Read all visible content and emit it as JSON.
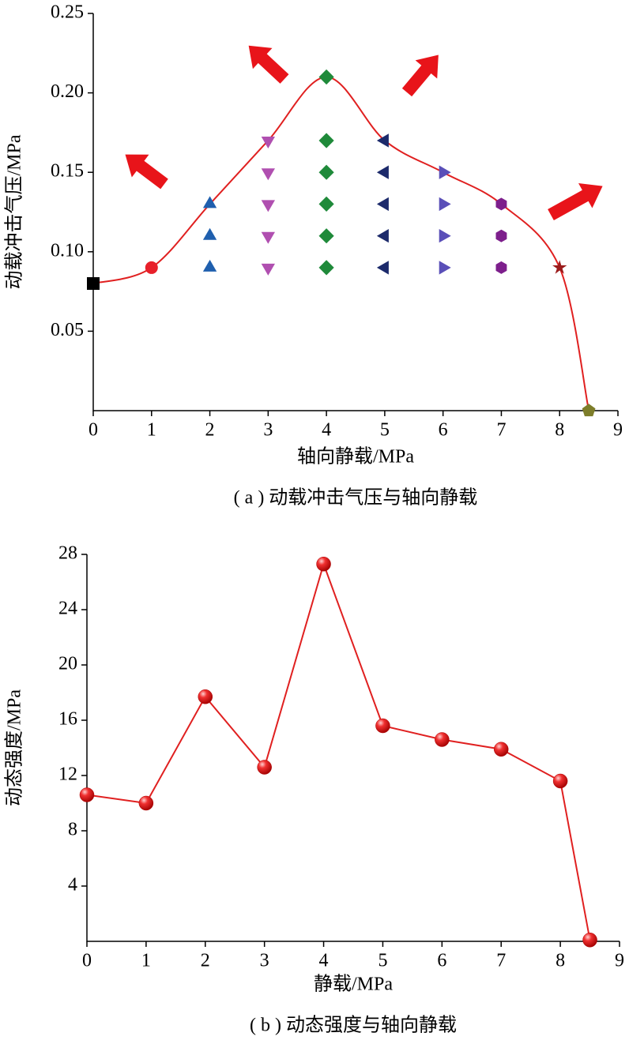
{
  "chart_data": [
    {
      "type": "scatter",
      "x_label": "轴向静载/MPa",
      "y_label": "动载冲击气压/MPa",
      "caption": "( a ) 动载冲击气压与轴向静载",
      "xlim": [
        0,
        9
      ],
      "ylim": [
        0,
        0.25
      ],
      "xticks": [
        0,
        1,
        2,
        3,
        4,
        5,
        6,
        7,
        8,
        9
      ],
      "yticks": [
        0.05,
        {
          "value": 0.1,
          "label": "0.10"
        },
        0.15,
        {
          "value": 0.2,
          "label": "0.20"
        },
        0.25
      ],
      "series": [
        {
          "marker": "square",
          "color": "#000000",
          "x": [
            0
          ],
          "values": [
            0.08
          ]
        },
        {
          "marker": "circle",
          "color": "#e8202a",
          "x": [
            1
          ],
          "values": [
            0.09
          ]
        },
        {
          "marker": "triangle-up",
          "color": "#1f5fae",
          "x": [
            2,
            2,
            2
          ],
          "values": [
            0.09,
            0.11,
            0.13
          ]
        },
        {
          "marker": "triangle-down",
          "color": "#b04fb0",
          "x": [
            3,
            3,
            3,
            3,
            3
          ],
          "values": [
            0.09,
            0.11,
            0.13,
            0.15,
            0.17
          ]
        },
        {
          "marker": "diamond",
          "color": "#1f8a3a",
          "x": [
            4,
            4,
            4,
            4,
            4,
            4
          ],
          "values": [
            0.09,
            0.11,
            0.13,
            0.15,
            0.17,
            0.21
          ]
        },
        {
          "marker": "triangle-left",
          "color": "#1c2a6b",
          "x": [
            5,
            5,
            5,
            5,
            5
          ],
          "values": [
            0.09,
            0.11,
            0.13,
            0.15,
            0.17
          ]
        },
        {
          "marker": "triangle-right",
          "color": "#5a4fb8",
          "x": [
            6,
            6,
            6,
            6
          ],
          "values": [
            0.09,
            0.11,
            0.13,
            0.15
          ]
        },
        {
          "marker": "hexagon",
          "color": "#7d1f8c",
          "x": [
            7,
            7,
            7
          ],
          "values": [
            0.09,
            0.11,
            0.13
          ]
        },
        {
          "marker": "star",
          "color": "#9b1b1b",
          "x": [
            8
          ],
          "values": [
            0.09
          ]
        },
        {
          "marker": "pentagon",
          "color": "#7d7d2a",
          "x": [
            8.5
          ],
          "values": [
            0.0
          ]
        },
        {
          "type": "line",
          "color": "#e02020",
          "x": [
            0,
            1,
            2,
            3,
            4,
            5,
            6,
            7,
            8,
            8.5
          ],
          "values": [
            0.08,
            0.09,
            0.13,
            0.17,
            0.21,
            0.17,
            0.15,
            0.13,
            0.09,
            0.0
          ]
        }
      ]
    },
    {
      "type": "line",
      "x_label": "静载/MPa",
      "y_label": "动态强度/MPa",
      "caption": "( b ) 动态强度与轴向静载",
      "xlim": [
        0,
        9
      ],
      "ylim": [
        0,
        28
      ],
      "xticks": [
        0,
        1,
        2,
        3,
        4,
        5,
        6,
        7,
        8,
        9
      ],
      "yticks": [
        4,
        8,
        12,
        16,
        20,
        24,
        28
      ],
      "color": "#e02020",
      "x": [
        0,
        1,
        2,
        3,
        4,
        5,
        6,
        7,
        8,
        8.5
      ],
      "values": [
        10.6,
        10.0,
        17.7,
        12.6,
        27.3,
        15.6,
        14.6,
        13.9,
        11.6,
        0.1
      ]
    }
  ]
}
